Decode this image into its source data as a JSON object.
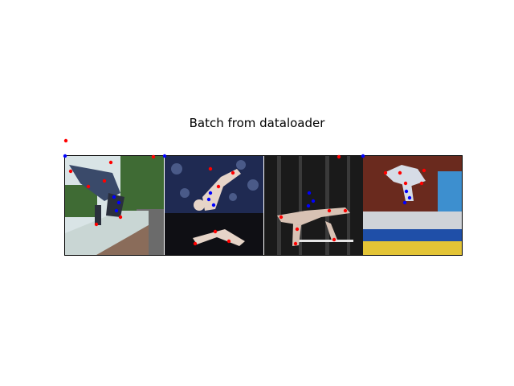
{
  "figure": {
    "title": "Batch from dataloader"
  },
  "panels": [
    {
      "subject": "boy doing a handstand on a stone ledge with trees behind",
      "colors": {
        "sky": "#d9e4e6",
        "foliage": "#3f6b34",
        "ledge": "#c9d6d4",
        "wall": "#8a6c5a",
        "ground": "#6b6b6b",
        "figure_shirt": "#3a4a6a",
        "figure_shorts": "#2a2f3d"
      }
    },
    {
      "subject": "gymnast in white leotard on a beam with a dark crowd behind",
      "colors": {
        "crowd": "#1f2a52",
        "crowd_light": "#4a5a88",
        "floor": "#0f0f14",
        "figure": "#e6d4c8"
      }
    },
    {
      "subject": "performer balancing on a bar in front of dark curtains",
      "colors": {
        "curtain": "#1a1a1a",
        "curtain_fold": "#3a3a3a",
        "figure": "#d8c2b4",
        "bar": "#e6e6e6"
      }
    },
    {
      "subject": "athlete in mid-air above a blue trampoline in an arena",
      "colors": {
        "stands": "#6a2a1e",
        "trampoline": "#1f4fa8",
        "mat": "#e3c436",
        "banner": "#3d8fcf",
        "figure_shirt": "#d6dce6"
      }
    }
  ],
  "keypoints": {
    "colors": {
      "predicted": "#ff0000",
      "ground_truth": "#0000ff"
    }
  }
}
